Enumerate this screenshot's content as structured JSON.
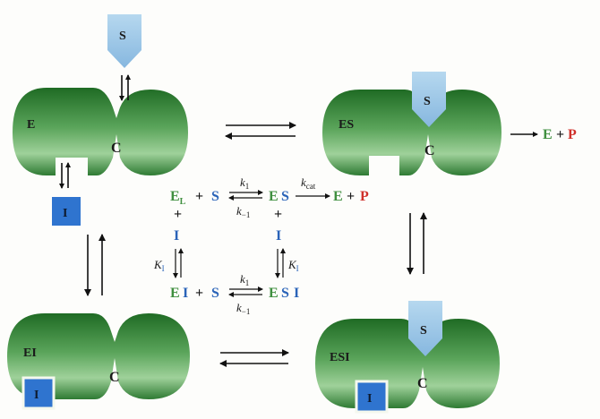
{
  "colors": {
    "enzyme": "#2f7a32",
    "substrate": "#9cc6e6",
    "inhibitor": "#2f74cf",
    "green_text": "#3f8f3f",
    "blue_text": "#2a63b8",
    "red_text": "#d0302a"
  },
  "enzymes": {
    "e": {
      "label": "E",
      "site": "C"
    },
    "es": {
      "label": "ES",
      "site": "C"
    },
    "ei": {
      "label": "EI",
      "site": "C"
    },
    "esi": {
      "label": "ESI",
      "site": "C"
    }
  },
  "shapes": {
    "substrate": "S",
    "inhibitor": "I"
  },
  "product_arrow": {
    "enzyme": "E",
    "plus": "+",
    "product": "P"
  },
  "scheme": {
    "row1": {
      "el_base": "E",
      "el_sub": "L",
      "plus": "+",
      "s": "S",
      "es_e": "E",
      "es_s": "S",
      "e": "E",
      "plus2": "+",
      "p": "P"
    },
    "row3": {
      "ei_e": "E",
      "ei_i": "I",
      "plus": "+",
      "s": "S",
      "esi_e": "E",
      "esi_s": "S",
      "esi_i": "I"
    },
    "plus_left": "+",
    "plus_right": "+",
    "i_left": "I",
    "i_right": "I",
    "k1_top": "k",
    "k1_top_sub": "1",
    "km1_top": "k",
    "km1_top_sub": "−1",
    "kcat": "k",
    "kcat_sub": "cat",
    "ki_left": "K",
    "ki_left_sub": "I",
    "ki_right": "K",
    "ki_right_sub": "I",
    "k1_bottom": "k",
    "k1_bottom_sub": "1",
    "km1_bottom": "k",
    "km1_bottom_sub": "−1"
  }
}
